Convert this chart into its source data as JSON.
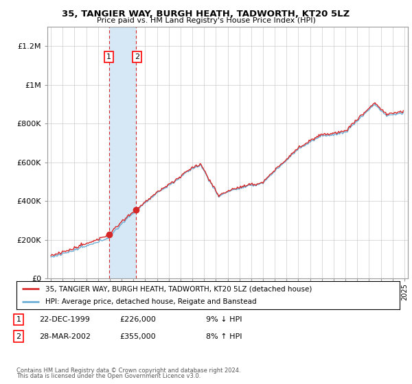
{
  "title": "35, TANGIER WAY, BURGH HEATH, TADWORTH, KT20 5LZ",
  "subtitle": "Price paid vs. HM Land Registry's House Price Index (HPI)",
  "y_ticks": [
    0,
    200000,
    400000,
    600000,
    800000,
    1000000,
    1200000
  ],
  "y_tick_labels": [
    "£0",
    "£200K",
    "£400K",
    "£600K",
    "£800K",
    "£1M",
    "£1.2M"
  ],
  "ylim": [
    0,
    1300000
  ],
  "sale1_date": 1999.97,
  "sale1_price": 226000,
  "sale2_date": 2002.24,
  "sale2_price": 355000,
  "legend_line1": "35, TANGIER WAY, BURGH HEATH, TADWORTH, KT20 5LZ (detached house)",
  "legend_line2": "HPI: Average price, detached house, Reigate and Banstead",
  "table_row1": [
    "1",
    "22-DEC-1999",
    "£226,000",
    "9% ↓ HPI"
  ],
  "table_row2": [
    "2",
    "28-MAR-2002",
    "£355,000",
    "8% ↑ HPI"
  ],
  "footer1": "Contains HM Land Registry data © Crown copyright and database right 2024.",
  "footer2": "This data is licensed under the Open Government Licence v3.0.",
  "hpi_color": "#6baed6",
  "price_color": "#d62728",
  "sale_dot_color": "#d62728",
  "shade_color": "#d6e8f5",
  "vline_color": "#d62728",
  "background_color": "#ffffff",
  "grid_color": "#cccccc"
}
